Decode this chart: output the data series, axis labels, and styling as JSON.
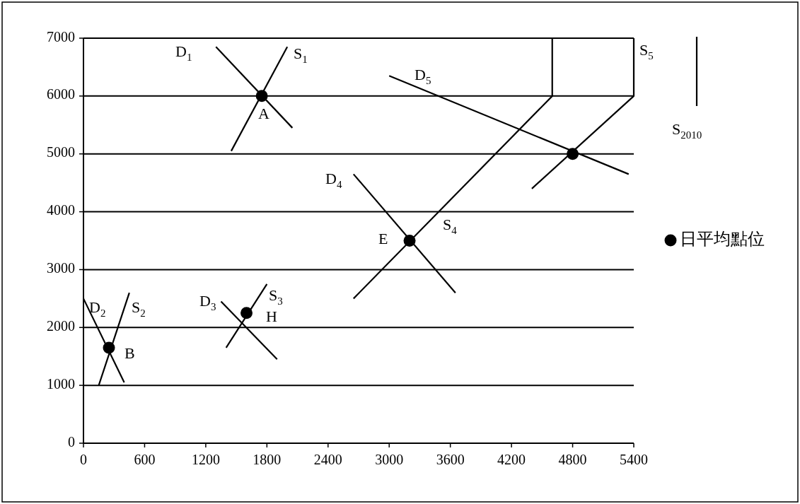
{
  "chart_data": {
    "type": "line",
    "xlim": [
      0,
      5400
    ],
    "ylim": [
      0,
      7000
    ],
    "xticks": [
      0,
      600,
      1200,
      1800,
      2400,
      3000,
      3600,
      4200,
      4800,
      5400
    ],
    "yticks": [
      0,
      1000,
      2000,
      3000,
      4000,
      5000,
      6000,
      7000
    ],
    "grid": "y",
    "legend": "right",
    "line_style": "solid",
    "series": [
      {
        "type": "line",
        "color": "#000000",
        "x": [
          1300,
          2050
        ],
        "values": [
          6850,
          5450
        ]
      },
      {
        "type": "line",
        "color": "#000000",
        "x": [
          1450,
          2000
        ],
        "values": [
          5050,
          6850
        ]
      },
      {
        "type": "line",
        "color": "#000000",
        "x": [
          0,
          400
        ],
        "values": [
          2500,
          1050
        ]
      },
      {
        "type": "line",
        "color": "#000000",
        "x": [
          150,
          450
        ],
        "values": [
          1000,
          2600
        ]
      },
      {
        "type": "line",
        "color": "#000000",
        "x": [
          1350,
          1900
        ],
        "values": [
          2450,
          1450
        ]
      },
      {
        "type": "line",
        "color": "#000000",
        "x": [
          1400,
          1800
        ],
        "values": [
          1650,
          2750
        ]
      },
      {
        "type": "line",
        "color": "#000000",
        "x": [
          2650,
          3650
        ],
        "values": [
          4650,
          2600
        ]
      },
      {
        "type": "line",
        "color": "#000000",
        "x": [
          2650,
          4600,
          4600
        ],
        "values": [
          2500,
          6000,
          7000
        ]
      },
      {
        "type": "line",
        "color": "#000000",
        "x": [
          3000,
          5350
        ],
        "values": [
          6350,
          4650
        ]
      },
      {
        "type": "line",
        "color": "#000000",
        "x": [
          4400,
          5400,
          5400
        ],
        "values": [
          4400,
          6000,
          7000
        ]
      },
      {
        "type": "scatter",
        "name": "日平均點位",
        "color": "#000000",
        "marker": "circle",
        "x": [
          1750,
          250,
          1600,
          3200,
          4800
        ],
        "values": [
          6000,
          1650,
          2250,
          3500,
          5000
        ]
      }
    ],
    "annotations": [
      "D$_{1}$",
      "S$_{1}$",
      "A",
      "D$_{5}$",
      "S$_{5}$",
      "D$_{4}$",
      "S$_{4}$",
      "E",
      "D$_{2}$",
      "S$_{2}$",
      "B",
      "D$_{3}$",
      "S$_{3}$",
      "H",
      "S$_{2010}$"
    ]
  }
}
